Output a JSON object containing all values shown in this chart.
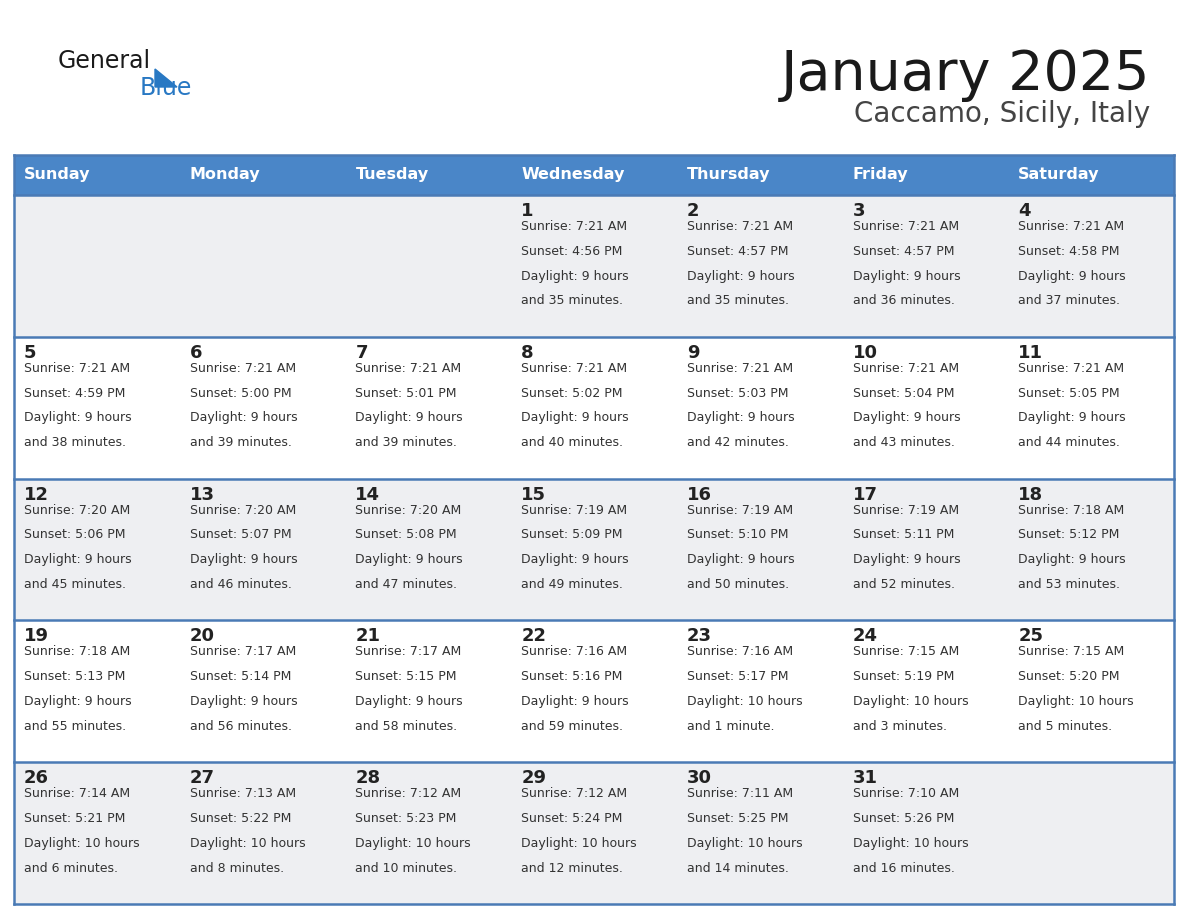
{
  "title": "January 2025",
  "subtitle": "Caccamo, Sicily, Italy",
  "header_bg_color": "#4a86c8",
  "header_text_color": "#ffffff",
  "row_bg_light": "#eeeff2",
  "row_bg_white": "#ffffff",
  "cell_border_color": "#4a7ab5",
  "day_names": [
    "Sunday",
    "Monday",
    "Tuesday",
    "Wednesday",
    "Thursday",
    "Friday",
    "Saturday"
  ],
  "title_color": "#1a1a1a",
  "subtitle_color": "#444444",
  "day_number_color": "#222222",
  "info_text_color": "#333333",
  "logo_general_color": "#1a1a1a",
  "logo_blue_color": "#2878c3",
  "calendar_data": [
    [
      {
        "day": "",
        "sunrise": "",
        "sunset": "",
        "daylight_h": "",
        "daylight_m": ""
      },
      {
        "day": "",
        "sunrise": "",
        "sunset": "",
        "daylight_h": "",
        "daylight_m": ""
      },
      {
        "day": "",
        "sunrise": "",
        "sunset": "",
        "daylight_h": "",
        "daylight_m": ""
      },
      {
        "day": "1",
        "sunrise": "7:21 AM",
        "sunset": "4:56 PM",
        "daylight_h": "9 hours",
        "daylight_m": "35 minutes."
      },
      {
        "day": "2",
        "sunrise": "7:21 AM",
        "sunset": "4:57 PM",
        "daylight_h": "9 hours",
        "daylight_m": "35 minutes."
      },
      {
        "day": "3",
        "sunrise": "7:21 AM",
        "sunset": "4:57 PM",
        "daylight_h": "9 hours",
        "daylight_m": "36 minutes."
      },
      {
        "day": "4",
        "sunrise": "7:21 AM",
        "sunset": "4:58 PM",
        "daylight_h": "9 hours",
        "daylight_m": "37 minutes."
      }
    ],
    [
      {
        "day": "5",
        "sunrise": "7:21 AM",
        "sunset": "4:59 PM",
        "daylight_h": "9 hours",
        "daylight_m": "38 minutes."
      },
      {
        "day": "6",
        "sunrise": "7:21 AM",
        "sunset": "5:00 PM",
        "daylight_h": "9 hours",
        "daylight_m": "39 minutes."
      },
      {
        "day": "7",
        "sunrise": "7:21 AM",
        "sunset": "5:01 PM",
        "daylight_h": "9 hours",
        "daylight_m": "39 minutes."
      },
      {
        "day": "8",
        "sunrise": "7:21 AM",
        "sunset": "5:02 PM",
        "daylight_h": "9 hours",
        "daylight_m": "40 minutes."
      },
      {
        "day": "9",
        "sunrise": "7:21 AM",
        "sunset": "5:03 PM",
        "daylight_h": "9 hours",
        "daylight_m": "42 minutes."
      },
      {
        "day": "10",
        "sunrise": "7:21 AM",
        "sunset": "5:04 PM",
        "daylight_h": "9 hours",
        "daylight_m": "43 minutes."
      },
      {
        "day": "11",
        "sunrise": "7:21 AM",
        "sunset": "5:05 PM",
        "daylight_h": "9 hours",
        "daylight_m": "44 minutes."
      }
    ],
    [
      {
        "day": "12",
        "sunrise": "7:20 AM",
        "sunset": "5:06 PM",
        "daylight_h": "9 hours",
        "daylight_m": "45 minutes."
      },
      {
        "day": "13",
        "sunrise": "7:20 AM",
        "sunset": "5:07 PM",
        "daylight_h": "9 hours",
        "daylight_m": "46 minutes."
      },
      {
        "day": "14",
        "sunrise": "7:20 AM",
        "sunset": "5:08 PM",
        "daylight_h": "9 hours",
        "daylight_m": "47 minutes."
      },
      {
        "day": "15",
        "sunrise": "7:19 AM",
        "sunset": "5:09 PM",
        "daylight_h": "9 hours",
        "daylight_m": "49 minutes."
      },
      {
        "day": "16",
        "sunrise": "7:19 AM",
        "sunset": "5:10 PM",
        "daylight_h": "9 hours",
        "daylight_m": "50 minutes."
      },
      {
        "day": "17",
        "sunrise": "7:19 AM",
        "sunset": "5:11 PM",
        "daylight_h": "9 hours",
        "daylight_m": "52 minutes."
      },
      {
        "day": "18",
        "sunrise": "7:18 AM",
        "sunset": "5:12 PM",
        "daylight_h": "9 hours",
        "daylight_m": "53 minutes."
      }
    ],
    [
      {
        "day": "19",
        "sunrise": "7:18 AM",
        "sunset": "5:13 PM",
        "daylight_h": "9 hours",
        "daylight_m": "55 minutes."
      },
      {
        "day": "20",
        "sunrise": "7:17 AM",
        "sunset": "5:14 PM",
        "daylight_h": "9 hours",
        "daylight_m": "56 minutes."
      },
      {
        "day": "21",
        "sunrise": "7:17 AM",
        "sunset": "5:15 PM",
        "daylight_h": "9 hours",
        "daylight_m": "58 minutes."
      },
      {
        "day": "22",
        "sunrise": "7:16 AM",
        "sunset": "5:16 PM",
        "daylight_h": "9 hours",
        "daylight_m": "59 minutes."
      },
      {
        "day": "23",
        "sunrise": "7:16 AM",
        "sunset": "5:17 PM",
        "daylight_h": "10 hours",
        "daylight_m": "1 minute."
      },
      {
        "day": "24",
        "sunrise": "7:15 AM",
        "sunset": "5:19 PM",
        "daylight_h": "10 hours",
        "daylight_m": "3 minutes."
      },
      {
        "day": "25",
        "sunrise": "7:15 AM",
        "sunset": "5:20 PM",
        "daylight_h": "10 hours",
        "daylight_m": "5 minutes."
      }
    ],
    [
      {
        "day": "26",
        "sunrise": "7:14 AM",
        "sunset": "5:21 PM",
        "daylight_h": "10 hours",
        "daylight_m": "6 minutes."
      },
      {
        "day": "27",
        "sunrise": "7:13 AM",
        "sunset": "5:22 PM",
        "daylight_h": "10 hours",
        "daylight_m": "8 minutes."
      },
      {
        "day": "28",
        "sunrise": "7:12 AM",
        "sunset": "5:23 PM",
        "daylight_h": "10 hours",
        "daylight_m": "10 minutes."
      },
      {
        "day": "29",
        "sunrise": "7:12 AM",
        "sunset": "5:24 PM",
        "daylight_h": "10 hours",
        "daylight_m": "12 minutes."
      },
      {
        "day": "30",
        "sunrise": "7:11 AM",
        "sunset": "5:25 PM",
        "daylight_h": "10 hours",
        "daylight_m": "14 minutes."
      },
      {
        "day": "31",
        "sunrise": "7:10 AM",
        "sunset": "5:26 PM",
        "daylight_h": "10 hours",
        "daylight_m": "16 minutes."
      },
      {
        "day": "",
        "sunrise": "",
        "sunset": "",
        "daylight_h": "",
        "daylight_m": ""
      }
    ]
  ]
}
